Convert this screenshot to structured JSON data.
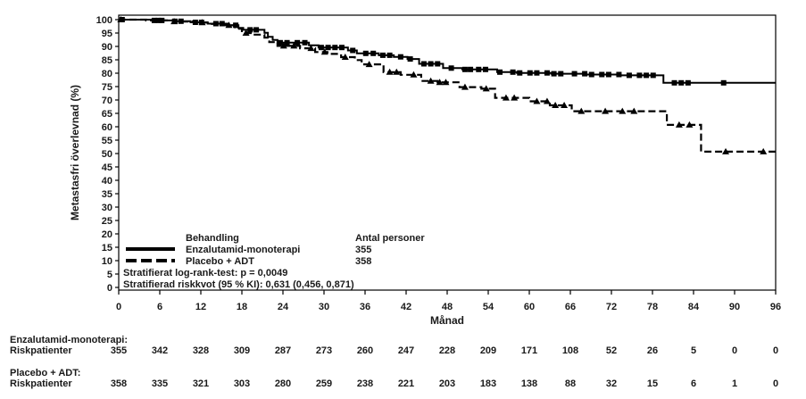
{
  "chart_data": {
    "type": "line",
    "subtype": "kaplan-meier-step",
    "title": "",
    "xlabel": "Månad",
    "ylabel": "Metastasfri överlevnad (%)",
    "xlim": [
      0,
      96
    ],
    "ylim": [
      0,
      100
    ],
    "x_ticks": [
      0,
      6,
      12,
      18,
      24,
      30,
      36,
      42,
      48,
      54,
      60,
      66,
      72,
      78,
      84,
      90,
      96
    ],
    "y_ticks": [
      0,
      5,
      10,
      15,
      20,
      25,
      30,
      35,
      40,
      45,
      50,
      55,
      60,
      65,
      70,
      75,
      80,
      85,
      90,
      95,
      100
    ],
    "grid": false,
    "line_color": "#000000",
    "legend": {
      "position": "inside-bottom-left",
      "header": "Behandling",
      "count_header": "Antal personer",
      "entries": [
        {
          "name": "Enzalutamid-monoterapi",
          "n": "355",
          "style": "solid",
          "marker": "square"
        },
        {
          "name": "Placebo + ADT",
          "n": "358",
          "style": "dashed",
          "marker": "triangle"
        }
      ]
    },
    "annotations": [
      "Stratifierat log-rank-test: p = 0,0049",
      "Stratifierad riskkvot (95 % KI): 0,631 (0,456, 0,871)"
    ],
    "series": [
      {
        "name": "Enzalutamid-monoterapi",
        "style": "solid",
        "marker": "square",
        "steps": [
          [
            0,
            100
          ],
          [
            5,
            99.7
          ],
          [
            8,
            99.4
          ],
          [
            10.5,
            99
          ],
          [
            13,
            98.5
          ],
          [
            16,
            97.9
          ],
          [
            17.5,
            96.9
          ],
          [
            18.2,
            96.2
          ],
          [
            21.3,
            95.1
          ],
          [
            21.8,
            93.6
          ],
          [
            22.5,
            92.4
          ],
          [
            23.2,
            91.4
          ],
          [
            27.8,
            90.4
          ],
          [
            29.2,
            89.6
          ],
          [
            33.5,
            88.5
          ],
          [
            34.8,
            87.4
          ],
          [
            38,
            86.7
          ],
          [
            40.2,
            86.1
          ],
          [
            42.2,
            85.3
          ],
          [
            43.9,
            83.5
          ],
          [
            47.4,
            81.9
          ],
          [
            50.2,
            81.4
          ],
          [
            55.3,
            80.4
          ],
          [
            58.2,
            80.1
          ],
          [
            63.2,
            79.8
          ],
          [
            68.2,
            79.5
          ],
          [
            73.2,
            79.2
          ],
          [
            79.6,
            76.4
          ],
          [
            96,
            76.4
          ]
        ],
        "censor_months": [
          0.5,
          5.2,
          5.8,
          6.3,
          8.2,
          9.1,
          11.2,
          12.1,
          14.2,
          15.1,
          17.1,
          19.2,
          20.1,
          23.6,
          24.6,
          26.1,
          27.2,
          29.6,
          30.6,
          31.6,
          32.6,
          34.2,
          36.1,
          37.2,
          38.6,
          39.6,
          41.2,
          42.6,
          44.6,
          45.6,
          46.6,
          48.6,
          50.6,
          51.4,
          52.6,
          53.6,
          55.7,
          57.6,
          58.6,
          60.1,
          61.1,
          62.6,
          63.6,
          64.6,
          66.6,
          68.1,
          69.1,
          70.6,
          71.6,
          73.1,
          74.6,
          76.1,
          77.1,
          78.1,
          81.2,
          82.2,
          83.2,
          88.4
        ]
      },
      {
        "name": "Placebo + ADT",
        "style": "dashed",
        "marker": "triangle",
        "steps": [
          [
            0,
            100
          ],
          [
            4,
            99.7
          ],
          [
            8,
            99.3
          ],
          [
            11,
            98.9
          ],
          [
            13.2,
            98.4
          ],
          [
            15.5,
            97.9
          ],
          [
            17,
            96.6
          ],
          [
            18,
            95
          ],
          [
            19.5,
            94.4
          ],
          [
            21.3,
            93.3
          ],
          [
            22,
            91.6
          ],
          [
            23.2,
            90.2
          ],
          [
            26.5,
            89.3
          ],
          [
            28.7,
            87.9
          ],
          [
            30.5,
            87.2
          ],
          [
            32.5,
            86
          ],
          [
            34.5,
            84.9
          ],
          [
            35.5,
            83.3
          ],
          [
            38.7,
            80.4
          ],
          [
            41.2,
            79.4
          ],
          [
            44.2,
            77.1
          ],
          [
            46.6,
            76.6
          ],
          [
            49.8,
            74.8
          ],
          [
            53,
            74.2
          ],
          [
            55,
            70.8
          ],
          [
            60,
            69.5
          ],
          [
            63,
            68
          ],
          [
            66.2,
            65.8
          ],
          [
            80.1,
            60.7
          ],
          [
            85.1,
            50.7
          ],
          [
            96,
            50.7
          ]
        ],
        "censor_months": [
          0.3,
          8.1,
          12.2,
          16.1,
          18.6,
          24.1,
          25.6,
          28.1,
          30.1,
          33.1,
          36.6,
          39.6,
          40.6,
          43.1,
          45.6,
          46.9,
          47.8,
          50.6,
          53.7,
          56.6,
          57.8,
          61.1,
          62.6,
          63.8,
          65.1,
          67.6,
          71.1,
          73.6,
          75.3,
          81.9,
          83.4,
          88.7,
          94.2
        ]
      }
    ],
    "risk_table": {
      "groups": [
        {
          "label": "Enzalutamid-monoterapi:",
          "sublabel": "Riskpatienter",
          "counts": [
            "355",
            "342",
            "328",
            "309",
            "287",
            "273",
            "260",
            "247",
            "228",
            "209",
            "171",
            "108",
            "52",
            "26",
            "5",
            "0",
            "0"
          ]
        },
        {
          "label": "Placebo + ADT:",
          "sublabel": "Riskpatienter",
          "counts": [
            "358",
            "335",
            "321",
            "303",
            "280",
            "259",
            "238",
            "221",
            "203",
            "183",
            "138",
            "88",
            "32",
            "15",
            "6",
            "1",
            "0"
          ]
        }
      ]
    }
  }
}
